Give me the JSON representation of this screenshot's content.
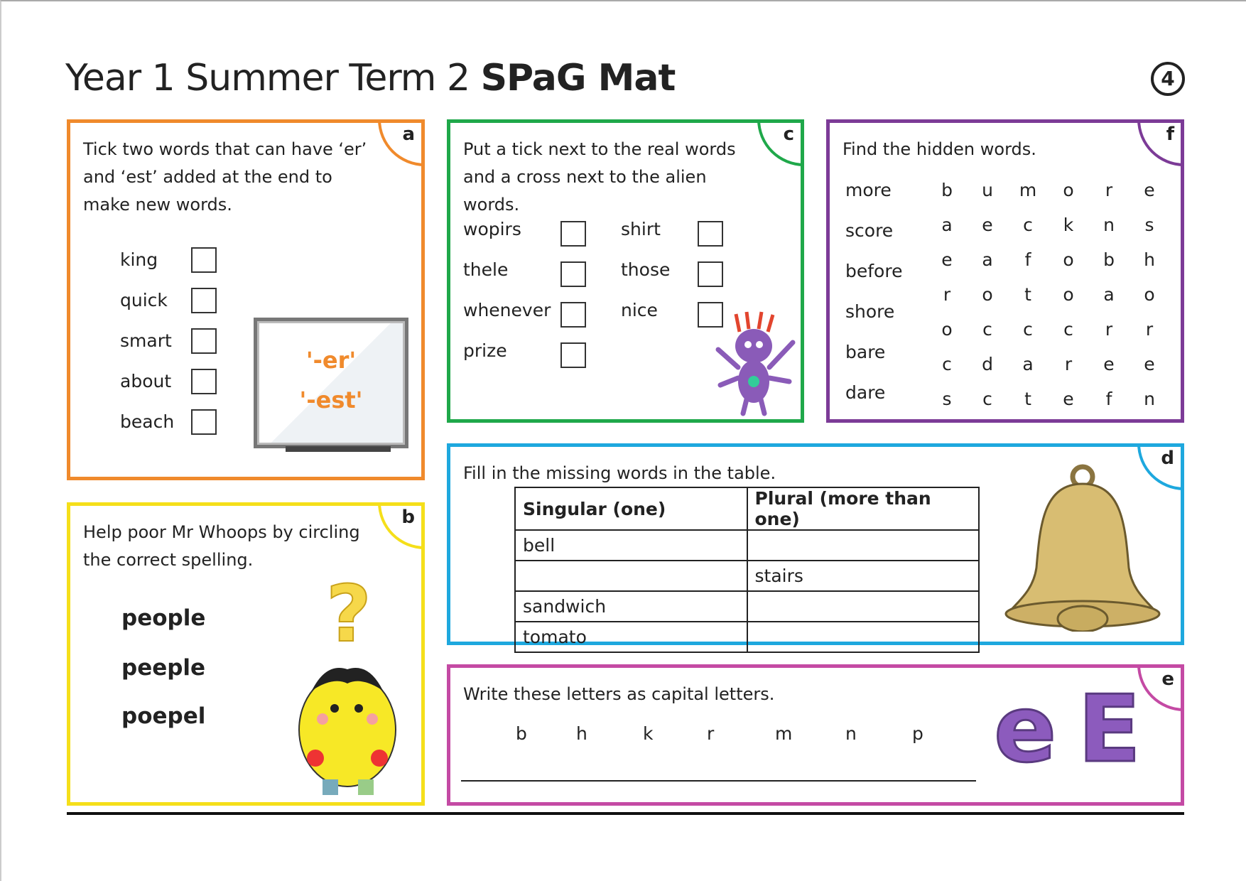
{
  "title": {
    "regular": "Year 1 Summer Term 2",
    "bold": "SPaG Mat",
    "page_number": "4"
  },
  "colors": {
    "a": "#f08a2c",
    "b": "#f5df1a",
    "c": "#1fa84a",
    "d": "#1ea8de",
    "e": "#c44aa4",
    "f": "#7c3b97"
  },
  "a": {
    "label": "a",
    "instruction": "Tick two words that can have ‘er’ and ‘est’ added at the end to make new words.",
    "words": [
      "king",
      "quick",
      "smart",
      "about",
      "beach"
    ],
    "board": [
      "'-er'",
      "'-est'"
    ]
  },
  "b": {
    "label": "b",
    "instruction": "Help poor Mr Whoops by circling the correct spelling.",
    "options": [
      "people",
      "peeple",
      "poepel"
    ]
  },
  "c": {
    "label": "c",
    "instruction": "Put a tick next to the real words and a cross next to the alien words.",
    "col1": [
      "wopirs",
      "thele",
      "whenever",
      "prize"
    ],
    "col2": [
      "shirt",
      "those",
      "nice"
    ]
  },
  "f": {
    "label": "f",
    "instruction": "Find the hidden words.",
    "words": [
      "more",
      "score",
      "before",
      "shore",
      "bare",
      "dare"
    ],
    "grid": [
      [
        "b",
        "u",
        "m",
        "o",
        "r",
        "e"
      ],
      [
        "a",
        "e",
        "c",
        "k",
        "n",
        "s"
      ],
      [
        "e",
        "a",
        "f",
        "o",
        "b",
        "h"
      ],
      [
        "r",
        "o",
        "t",
        "o",
        "a",
        "o"
      ],
      [
        "o",
        "c",
        "c",
        "c",
        "r",
        "r"
      ],
      [
        "c",
        "d",
        "a",
        "r",
        "e",
        "e"
      ],
      [
        "s",
        "c",
        "t",
        "e",
        "f",
        "n"
      ]
    ]
  },
  "d": {
    "label": "d",
    "instruction": "Fill in the missing words in the table.",
    "headers": [
      "Singular (one)",
      "Plural (more than one)"
    ],
    "rows": [
      [
        "bell",
        ""
      ],
      [
        "",
        "stairs"
      ],
      [
        "sandwich",
        ""
      ],
      [
        "tomato",
        ""
      ]
    ]
  },
  "e": {
    "label": "e",
    "instruction": "Write these letters as capital letters.",
    "letters": [
      "b",
      "h",
      "k",
      "r",
      "m",
      "n",
      "p"
    ],
    "picture": [
      "e",
      "E"
    ]
  }
}
